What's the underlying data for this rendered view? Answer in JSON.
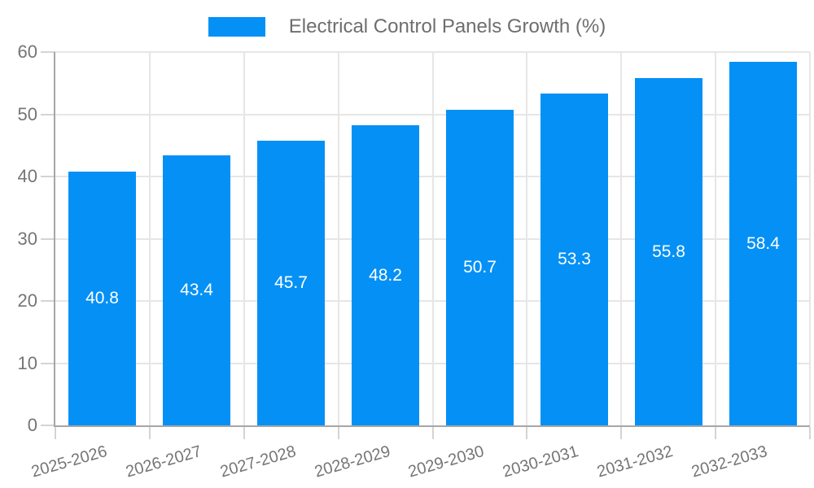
{
  "legend": {
    "label": "Electrical Control Panels Growth (%)"
  },
  "chart_data": {
    "type": "bar",
    "title": "Electrical Control Panels Growth (%)",
    "categories": [
      "2025-2026",
      "2026-2027",
      "2027-2028",
      "2028-2029",
      "2029-2030",
      "2030-2031",
      "2031-2032",
      "2032-2033"
    ],
    "series": [
      {
        "name": "Electrical Control Panels Growth (%)",
        "values": [
          40.8,
          43.4,
          45.7,
          48.2,
          50.7,
          53.3,
          55.8,
          58.4
        ]
      }
    ],
    "value_labels": [
      "40.8",
      "43.4",
      "45.7",
      "48.2",
      "50.7",
      "53.3",
      "55.8",
      "58.4"
    ],
    "xlabel": "",
    "ylabel": "",
    "ylim": [
      0,
      60
    ],
    "ytick_step": 10,
    "ytick_labels": [
      "0",
      "10",
      "20",
      "30",
      "40",
      "50",
      "60"
    ],
    "grid": true,
    "legend_position": "top-center"
  },
  "colors": {
    "bar": "#0590f5",
    "value_label": "#ffffff",
    "tick_label": "#757575",
    "legend_text": "#6e6e6e",
    "gridline": "#e6e6e6",
    "axis": "#a6a6a6",
    "tick_mark": "#d4d4d4"
  }
}
